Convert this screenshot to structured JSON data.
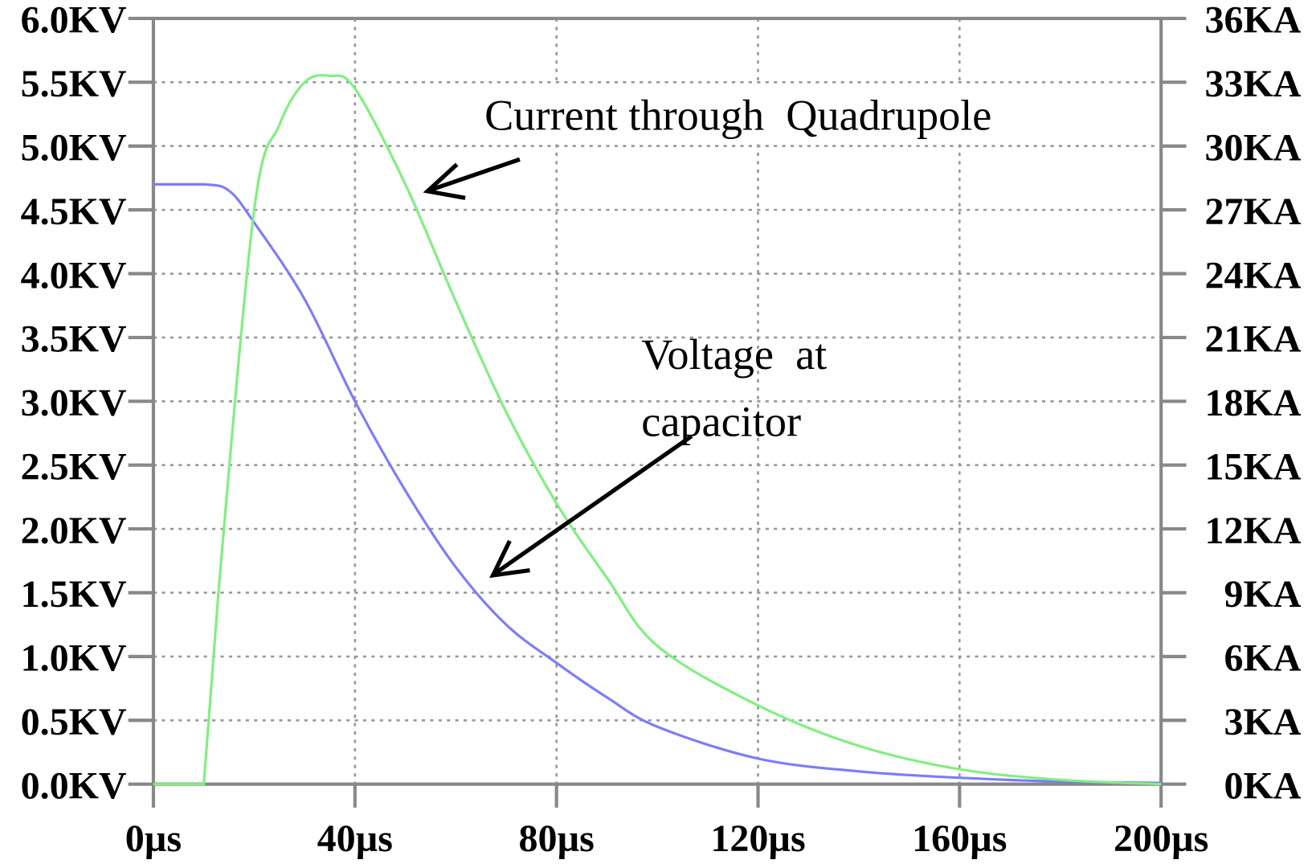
{
  "chart_data": {
    "type": "line",
    "title": "",
    "xlabel": "",
    "ylabel": "",
    "y2label": "",
    "xlim": [
      0,
      200
    ],
    "ylim": [
      0,
      6.0
    ],
    "y2lim": [
      0,
      36
    ],
    "grid": true,
    "x_ticks": [
      "0µs",
      "40µs",
      "80µs",
      "120µs",
      "160µs",
      "200µs"
    ],
    "x_tick_values": [
      0,
      40,
      80,
      120,
      160,
      200
    ],
    "y_ticks": [
      "0.0KV",
      "0.5KV",
      "1.0KV",
      "1.5KV",
      "2.0KV",
      "2.5KV",
      "3.0KV",
      "3.5KV",
      "4.0KV",
      "4.5KV",
      "5.0KV",
      "5.5KV",
      "6.0KV"
    ],
    "y_tick_values": [
      0,
      0.5,
      1,
      1.5,
      2,
      2.5,
      3,
      3.5,
      4,
      4.5,
      5,
      5.5,
      6
    ],
    "y2_ticks": [
      "0KA",
      "3KA",
      "6KA",
      "9KA",
      "12KA",
      "15KA",
      "18KA",
      "21KA",
      "24KA",
      "27KA",
      "30KA",
      "33KA",
      "36KA"
    ],
    "y2_tick_values": [
      0,
      3,
      6,
      9,
      12,
      15,
      18,
      21,
      24,
      27,
      30,
      33,
      36
    ],
    "series": [
      {
        "axis": "left",
        "unit": "KV",
        "color": "#7b7bff",
        "x": [
          0,
          10,
          15,
          20,
          30,
          40,
          50,
          60,
          70,
          80,
          90,
          100,
          120,
          140,
          160,
          180,
          200
        ],
        "y": [
          4.7,
          4.7,
          4.65,
          4.4,
          3.8,
          3.0,
          2.3,
          1.7,
          1.25,
          0.95,
          0.68,
          0.45,
          0.2,
          0.1,
          0.05,
          0.02,
          0.01
        ]
      },
      {
        "axis": "right",
        "unit": "KA",
        "color": "#7fef7f",
        "x": [
          0,
          10,
          13,
          20,
          25,
          30,
          35,
          40,
          50,
          60,
          70,
          80,
          90,
          100,
          120,
          140,
          160,
          180,
          200
        ],
        "y": [
          0,
          0,
          9.3,
          27,
          31,
          33,
          33.3,
          32.7,
          28.2,
          22.7,
          17.5,
          13.2,
          9.7,
          6.5,
          3.7,
          1.8,
          0.7,
          0.2,
          0
        ]
      }
    ],
    "annotations": [
      {
        "text": "Current through  Quadrupole",
        "points_to": "current"
      },
      {
        "text_lines": [
          "Voltage  at",
          "capacitor"
        ],
        "points_to": "voltage"
      }
    ]
  }
}
